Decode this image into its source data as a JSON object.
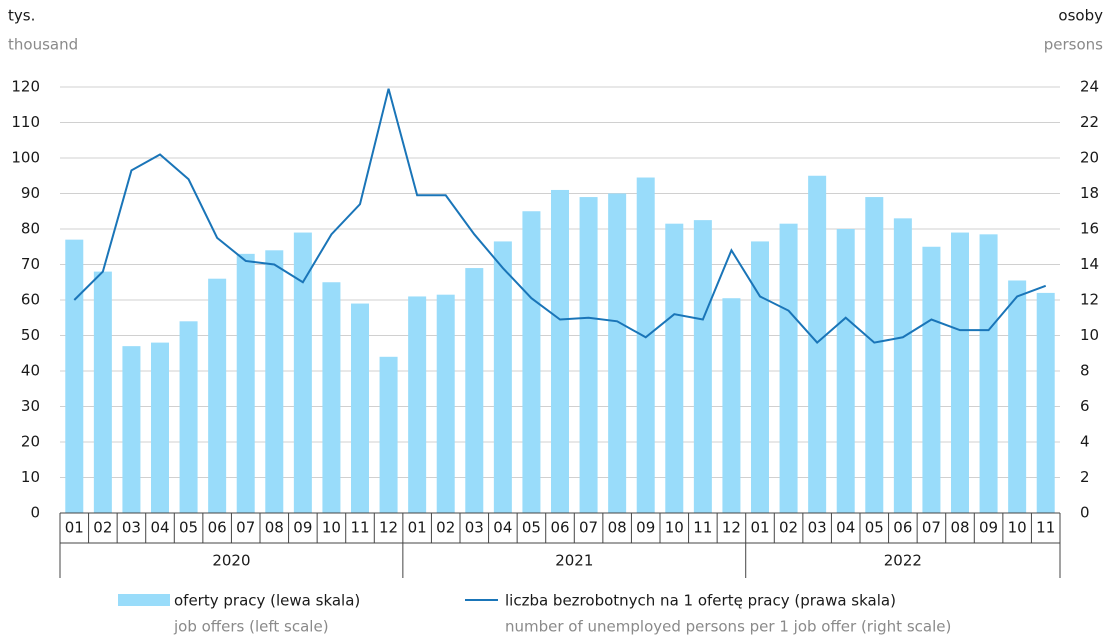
{
  "chart_data": {
    "type": "bar",
    "y_label": "tys.",
    "y_label_en": "thousand",
    "y2_label": "osoby",
    "y2_label_en": "persons",
    "categories": [
      "01",
      "02",
      "03",
      "04",
      "05",
      "06",
      "07",
      "08",
      "09",
      "10",
      "11",
      "12",
      "01",
      "02",
      "03",
      "04",
      "05",
      "06",
      "07",
      "08",
      "09",
      "10",
      "11",
      "12",
      "01",
      "02",
      "03",
      "04",
      "05",
      "06",
      "07",
      "08",
      "09",
      "10",
      "11"
    ],
    "years": [
      "2020",
      "2021",
      "2022"
    ],
    "series": [
      {
        "name": "oferty pracy (lewa skala)",
        "name_en": "job offers (left scale)",
        "type": "bar",
        "color": "#99dcfa",
        "values": [
          77,
          68,
          47,
          48,
          54,
          66,
          73,
          74,
          79,
          65,
          59,
          44,
          61,
          61.5,
          69,
          76.5,
          85,
          91,
          89,
          90,
          94.5,
          81.5,
          82.5,
          60.5,
          76.5,
          81.5,
          95,
          80,
          89,
          83,
          75,
          79,
          78.5,
          65.5,
          62
        ]
      },
      {
        "name": "liczba bezrobotnych na 1 ofertę pracy (prawa skala)",
        "name_en": "number of unemployed persons per 1 job offer (right scale)",
        "type": "line",
        "axis": "y2",
        "color": "#1a75b8",
        "values": [
          12.0,
          13.6,
          19.3,
          20.2,
          18.8,
          15.5,
          14.2,
          14.0,
          13.0,
          15.7,
          17.4,
          23.9,
          17.9,
          17.9,
          15.7,
          13.8,
          12.1,
          10.9,
          11.0,
          10.8,
          9.9,
          11.2,
          10.9,
          14.8,
          12.2,
          11.4,
          9.6,
          11.0,
          9.6,
          9.9,
          10.9,
          10.3,
          10.3,
          12.2,
          12.8
        ]
      }
    ],
    "ylim": [
      0,
      120
    ],
    "yticks": [
      0,
      10,
      20,
      30,
      40,
      50,
      60,
      70,
      80,
      90,
      100,
      110,
      120
    ],
    "y2lim": [
      0,
      24
    ],
    "y2ticks": [
      0,
      2,
      4,
      6,
      8,
      10,
      12,
      14,
      16,
      18,
      20,
      22,
      24
    ],
    "grid": true
  }
}
